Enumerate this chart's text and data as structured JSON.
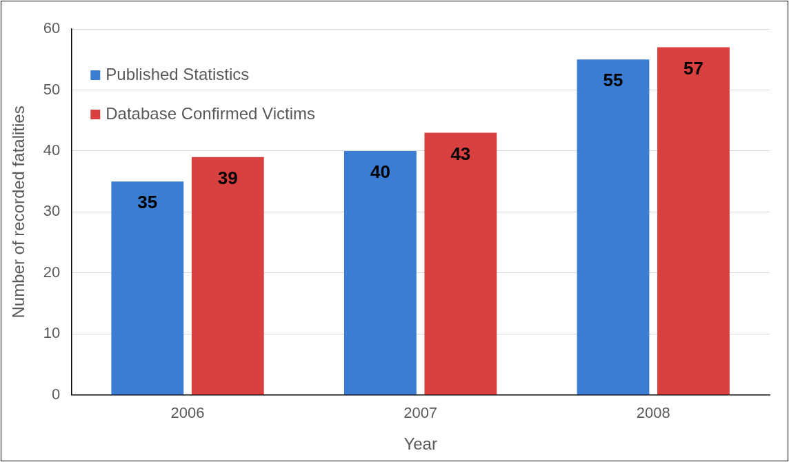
{
  "chart_data": {
    "type": "bar",
    "xlabel": "Year",
    "ylabel": "Number of recorded fatalities",
    "categories": [
      "2006",
      "2007",
      "2008"
    ],
    "series": [
      {
        "name": "Published Statistics",
        "color": "#3b7dd3",
        "values": [
          35,
          40,
          55
        ]
      },
      {
        "name": "Database Confirmed Victims",
        "color": "#d8413f",
        "values": [
          39,
          43,
          57
        ]
      }
    ],
    "ylim": [
      0,
      60
    ],
    "yticks": [
      0,
      10,
      20,
      30,
      40,
      50,
      60
    ],
    "grid": "y",
    "legend": "top left",
    "data_labels": true
  }
}
